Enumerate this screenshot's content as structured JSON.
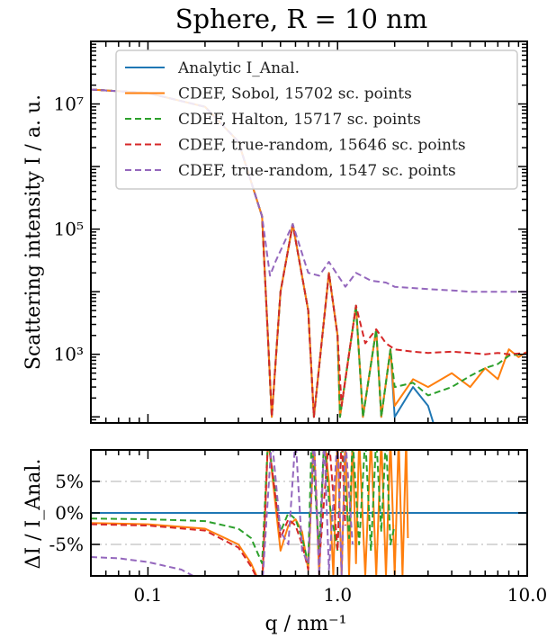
{
  "chart_data": [
    {
      "type": "line",
      "title": "Sphere, R = 10 nm",
      "xlabel": "",
      "ylabel": "Scattering intensity I / a. u.",
      "x_scale": "log",
      "y_scale": "log",
      "xlim": [
        0.05,
        10
      ],
      "ylim": [
        80,
        100000000
      ],
      "y_ticks": [
        {
          "value": 1000,
          "label": "10³"
        },
        {
          "value": 100000,
          "label": "10⁵"
        },
        {
          "value": 10000000,
          "label": "10⁷"
        }
      ],
      "legend_position": "top-right",
      "series": [
        {
          "name": "Analytic I_Anal.",
          "color": "#1f77b4",
          "dash": "solid",
          "x": [
            0.05,
            0.1,
            0.2,
            0.3,
            0.4,
            0.45,
            0.5,
            0.58,
            0.7,
            0.75,
            0.9,
            1.0,
            1.03,
            1.25,
            1.36,
            1.6,
            1.7,
            1.9,
            2.0,
            2.5,
            3.0,
            3.2
          ],
          "y": [
            17000000,
            15000000,
            9000000,
            2500000,
            160000,
            100,
            10000,
            120000,
            5000,
            100,
            20000,
            2000,
            100,
            6000,
            100,
            2500,
            100,
            1200,
            100,
            300,
            150,
            80
          ]
        },
        {
          "name": "CDEF, Sobol, 15702 sc. points",
          "color": "#ff7f0e",
          "dash": "solid",
          "x": [
            0.05,
            0.1,
            0.2,
            0.3,
            0.4,
            0.45,
            0.5,
            0.58,
            0.7,
            0.75,
            0.9,
            1.0,
            1.03,
            1.25,
            1.36,
            1.6,
            1.7,
            1.9,
            2.0,
            2.5,
            3.0,
            4.0,
            5.0,
            6.0,
            7.0,
            8.0,
            9.0,
            10.0
          ],
          "y": [
            17000000,
            15000000,
            9000000,
            2500000,
            160000,
            100,
            10000,
            120000,
            5000,
            100,
            20000,
            2000,
            100,
            6000,
            100,
            2500,
            100,
            1200,
            150,
            400,
            300,
            500,
            300,
            600,
            400,
            1200,
            900,
            1100
          ]
        },
        {
          "name": "CDEF, Halton, 15717 sc. points",
          "color": "#2ca02c",
          "dash": "dashed",
          "x": [
            0.05,
            0.1,
            0.2,
            0.3,
            0.4,
            0.45,
            0.5,
            0.58,
            0.7,
            0.75,
            0.9,
            1.0,
            1.03,
            1.25,
            1.36,
            1.6,
            1.7,
            1.9,
            2.0,
            2.5,
            3.0,
            4.0,
            5.0,
            6.0,
            7.0,
            8.0,
            10.0
          ],
          "y": [
            17000000,
            15000000,
            9000000,
            2500000,
            160000,
            100,
            10000,
            120000,
            5000,
            100,
            20000,
            2000,
            100,
            6000,
            100,
            2500,
            100,
            1200,
            300,
            350,
            220,
            300,
            450,
            600,
            700,
            950,
            1050
          ]
        },
        {
          "name": "CDEF, true-random, 15646 sc. points",
          "color": "#d62728",
          "dash": "dashed",
          "x": [
            0.05,
            0.1,
            0.2,
            0.3,
            0.4,
            0.45,
            0.5,
            0.58,
            0.7,
            0.75,
            0.9,
            1.0,
            1.05,
            1.25,
            1.4,
            1.6,
            1.8,
            2.0,
            2.5,
            3.0,
            4.0,
            5.0,
            6.0,
            7.0,
            8.0,
            10.0
          ],
          "y": [
            17000000,
            15000000,
            9000000,
            2500000,
            160000,
            100,
            10000,
            120000,
            5000,
            100,
            20000,
            2000,
            150,
            6000,
            1500,
            2500,
            1500,
            1200,
            1100,
            1050,
            1100,
            1050,
            1000,
            1050,
            1000,
            1050
          ]
        },
        {
          "name": "CDEF, true-random, 1547 sc. points",
          "color": "#9467bd",
          "dash": "dashed",
          "x": [
            0.05,
            0.1,
            0.2,
            0.3,
            0.4,
            0.44,
            0.47,
            0.58,
            0.7,
            0.8,
            0.9,
            1.1,
            1.25,
            1.5,
            1.8,
            2.0,
            3.0,
            4.0,
            5.0,
            7.0,
            10.0
          ],
          "y": [
            17000000,
            15000000,
            9000000,
            2500000,
            160000,
            18000,
            30000,
            120000,
            20000,
            18000,
            30000,
            12000,
            20000,
            15000,
            14000,
            12000,
            11000,
            10500,
            10000,
            10000,
            10000
          ]
        }
      ]
    },
    {
      "type": "line",
      "title": "",
      "xlabel": "q / nm⁻¹",
      "ylabel": "ΔI / I_Anal.",
      "x_scale": "log",
      "xlim": [
        0.05,
        10
      ],
      "ylim": [
        -0.1,
        0.1
      ],
      "x_ticks": [
        {
          "value": 0.1,
          "label": "0.1"
        },
        {
          "value": 1.0,
          "label": "1.0"
        },
        {
          "value": 10.0,
          "label": "10.0"
        }
      ],
      "y_ticks": [
        {
          "value": 0.05,
          "label": "5%"
        },
        {
          "value": 0.0,
          "label": "0%"
        },
        {
          "value": -0.05,
          "label": "-5%"
        }
      ],
      "series": [
        {
          "name": "Analytic",
          "color": "#1f77b4",
          "dash": "solid",
          "x": [
            0.05,
            10.0
          ],
          "y": [
            0,
            0
          ]
        },
        {
          "name": "Sobol",
          "color": "#ff7f0e",
          "dash": "solid",
          "x": [
            0.05,
            0.1,
            0.2,
            0.3,
            0.35,
            0.4,
            0.43,
            0.5,
            0.55,
            0.6,
            0.65,
            0.7,
            0.75,
            0.8,
            0.85,
            0.9,
            0.95,
            1.0,
            1.05,
            1.1,
            1.15,
            1.2,
            1.25,
            1.3,
            1.4,
            1.5,
            1.6,
            1.7,
            1.8,
            1.9,
            2.0,
            2.1,
            2.2,
            2.3,
            2.35
          ],
          "y": [
            -0.016,
            -0.018,
            -0.025,
            -0.05,
            -0.08,
            -0.12,
            0.12,
            -0.06,
            -0.02,
            -0.01,
            -0.03,
            -0.09,
            0.12,
            -0.1,
            0.12,
            0.05,
            -0.1,
            0.12,
            -0.1,
            0.12,
            -0.1,
            0.12,
            -0.08,
            0.12,
            -0.1,
            0.12,
            -0.1,
            0.12,
            -0.1,
            0.12,
            -0.1,
            0.12,
            -0.1,
            0.12,
            -0.04
          ]
        },
        {
          "name": "Halton",
          "color": "#2ca02c",
          "dash": "dashed",
          "x": [
            0.05,
            0.1,
            0.2,
            0.3,
            0.35,
            0.4,
            0.43,
            0.5,
            0.55,
            0.6,
            0.65,
            0.7,
            0.73,
            0.8,
            0.85,
            0.9,
            1.0,
            1.05,
            1.15,
            1.2,
            1.3,
            1.4,
            1.5,
            1.6,
            1.7,
            1.8,
            1.9,
            2.0
          ],
          "y": [
            -0.009,
            -0.01,
            -0.013,
            -0.025,
            -0.04,
            -0.08,
            0.12,
            -0.03,
            0.0,
            -0.01,
            -0.04,
            -0.08,
            0.12,
            -0.06,
            0.12,
            0.02,
            -0.06,
            0.12,
            -0.04,
            0.12,
            -0.05,
            0.12,
            -0.06,
            0.12,
            -0.03,
            0.12,
            -0.05,
            -0.02
          ]
        },
        {
          "name": "true-random 15646",
          "color": "#d62728",
          "dash": "dashed",
          "x": [
            0.05,
            0.1,
            0.2,
            0.3,
            0.35,
            0.4,
            0.43,
            0.5,
            0.55,
            0.6,
            0.65,
            0.7,
            0.75,
            0.8,
            0.9,
            1.0,
            1.05,
            1.1
          ],
          "y": [
            -0.018,
            -0.02,
            -0.028,
            -0.055,
            -0.085,
            -0.12,
            0.12,
            -0.04,
            -0.01,
            -0.02,
            -0.05,
            -0.09,
            0.12,
            -0.08,
            0.12,
            -0.06,
            0.12,
            -0.02
          ]
        },
        {
          "name": "true-random 1547",
          "color": "#9467bd",
          "dash": "dashed",
          "x": [
            0.05,
            0.07,
            0.1,
            0.15,
            0.2,
            0.25,
            0.3,
            0.35,
            0.4,
            0.45,
            0.5,
            0.55,
            0.6,
            0.65,
            0.7,
            0.75,
            0.8,
            0.85,
            0.9,
            1.0,
            1.05,
            1.1,
            1.2
          ],
          "y": [
            -0.07,
            -0.072,
            -0.078,
            -0.09,
            -0.11,
            -0.12,
            -0.12,
            -0.12,
            -0.12,
            0.12,
            -0.03,
            -0.05,
            0.12,
            -0.06,
            -0.08,
            0.12,
            -0.1,
            0.12,
            -0.09,
            0.12,
            -0.1,
            0.12,
            -0.05
          ]
        }
      ]
    }
  ]
}
